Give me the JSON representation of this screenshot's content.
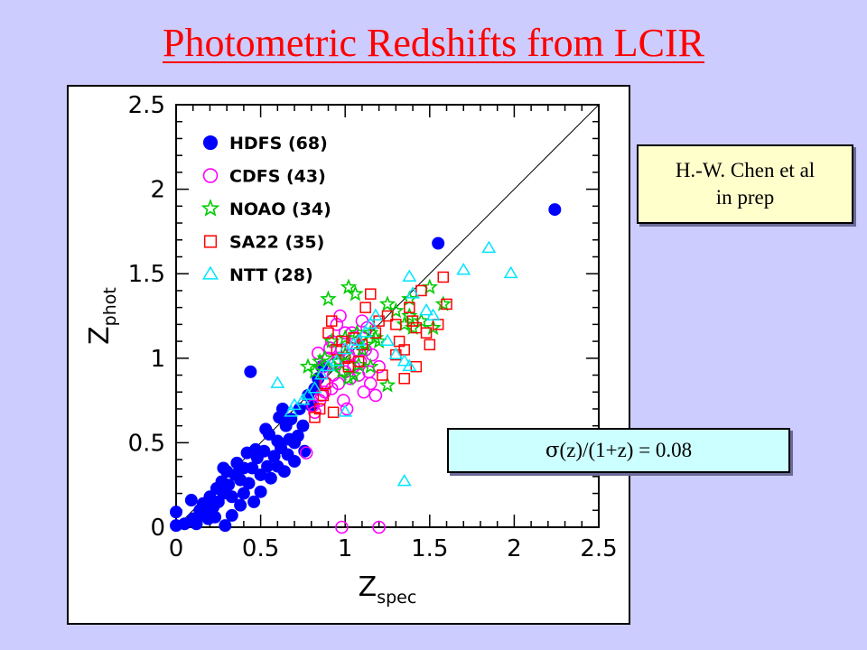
{
  "slide": {
    "title": "Photometric Redshifts from LCIR",
    "credit_line1": "H.-W. Chen et al",
    "credit_line2": "in prep",
    "sigma_symbol": "σ",
    "sigma_rest": "(z)/(1+z) = 0.08"
  },
  "colors": {
    "title": "#ff0000",
    "background": "#ccccff",
    "HDFS": "#0000ff",
    "CDFS": "#ff00ff",
    "NOAO": "#00cc00",
    "SA22": "#ff0000",
    "NTT": "#00e5ff"
  },
  "chart_data": {
    "type": "scatter",
    "title": "",
    "xlabel_main": "Z",
    "xlabel_sub": "spec",
    "ylabel_main": "Z",
    "ylabel_sub": "phot",
    "xlim": [
      0,
      2.5
    ],
    "ylim": [
      0,
      2.5
    ],
    "x_ticks": [
      "0",
      "0.5",
      "1",
      "1.5",
      "2",
      "2.5"
    ],
    "y_ticks": [
      "0",
      "0.5",
      "1",
      "1.5",
      "2",
      "2.5"
    ],
    "grid": false,
    "legend_position": "top-left",
    "reference_line": [
      [
        0,
        0
      ],
      [
        2.5,
        2.5
      ]
    ],
    "series": [
      {
        "name": "HDFS (68)",
        "marker": "filled-circle",
        "points": [
          [
            0,
            0.09
          ],
          [
            0,
            0.01
          ],
          [
            0.05,
            0.02
          ],
          [
            0.09,
            0.16
          ],
          [
            0.1,
            0.05
          ],
          [
            0.12,
            0.02
          ],
          [
            0.14,
            0.1
          ],
          [
            0.16,
            0.14
          ],
          [
            0.18,
            0.09
          ],
          [
            0.2,
            0.18
          ],
          [
            0.22,
            0.12
          ],
          [
            0.23,
            0.06
          ],
          [
            0.24,
            0.23
          ],
          [
            0.25,
            0.15
          ],
          [
            0.27,
            0.27
          ],
          [
            0.28,
            0.2
          ],
          [
            0.3,
            0.33
          ],
          [
            0.31,
            0.25
          ],
          [
            0.33,
            0.18
          ],
          [
            0.35,
            0.31
          ],
          [
            0.36,
            0.38
          ],
          [
            0.38,
            0.28
          ],
          [
            0.38,
            0.13
          ],
          [
            0.4,
            0.35
          ],
          [
            0.42,
            0.44
          ],
          [
            0.43,
            0.26
          ],
          [
            0.45,
            0.35
          ],
          [
            0.46,
            0.15
          ],
          [
            0.48,
            0.41
          ],
          [
            0.5,
            0.31
          ],
          [
            0.5,
            0.21
          ],
          [
            0.52,
            0.45
          ],
          [
            0.54,
            0.36
          ],
          [
            0.55,
            0.55
          ],
          [
            0.56,
            0.29
          ],
          [
            0.58,
            0.42
          ],
          [
            0.6,
            0.36
          ],
          [
            0.6,
            0.51
          ],
          [
            0.61,
            0.65
          ],
          [
            0.62,
            0.47
          ],
          [
            0.64,
            0.33
          ],
          [
            0.65,
            0.6
          ],
          [
            0.66,
            0.43
          ],
          [
            0.67,
            0.52
          ],
          [
            0.68,
            0.64
          ],
          [
            0.7,
            0.39
          ],
          [
            0.7,
            0.5
          ],
          [
            0.72,
            0.54
          ],
          [
            0.73,
            0.7
          ],
          [
            0.75,
            0.6
          ],
          [
            0.76,
            0.45
          ],
          [
            0.78,
            0.78
          ],
          [
            0.8,
            0.72
          ],
          [
            0.82,
            0.82
          ],
          [
            0.84,
            0.88
          ],
          [
            0.86,
            0.95
          ],
          [
            0.44,
            0.92
          ],
          [
            0.29,
            0.01
          ],
          [
            0.33,
            0.07
          ],
          [
            0.15,
            0.07
          ],
          [
            0.19,
            0.05
          ],
          [
            0.4,
            0.2
          ],
          [
            0.28,
            0.35
          ],
          [
            0.47,
            0.46
          ],
          [
            0.53,
            0.58
          ],
          [
            0.63,
            0.7
          ],
          [
            1.55,
            1.68
          ],
          [
            2.24,
            1.88
          ]
        ]
      },
      {
        "name": "CDFS (43)",
        "marker": "open-circle",
        "points": [
          [
            0.77,
            0.44
          ],
          [
            0.82,
            0.68
          ],
          [
            0.85,
            0.75
          ],
          [
            0.88,
            0.8
          ],
          [
            0.9,
            1.0
          ],
          [
            0.92,
            1.1
          ],
          [
            0.95,
            1.2
          ],
          [
            0.97,
            1.25
          ],
          [
            1.0,
            1.15
          ],
          [
            1.02,
            1.02
          ],
          [
            1.05,
            0.95
          ],
          [
            1.08,
            0.9
          ],
          [
            1.1,
            1.22
          ],
          [
            1.12,
            1.05
          ],
          [
            1.15,
            0.85
          ],
          [
            1.18,
            0.78
          ],
          [
            0.93,
            0.9
          ],
          [
            0.96,
            0.85
          ],
          [
            0.99,
            0.75
          ],
          [
            1.01,
            0.7
          ],
          [
            1.03,
            0.88
          ],
          [
            0.87,
            0.95
          ],
          [
            0.84,
            1.03
          ],
          [
            0.91,
            1.06
          ],
          [
            1.06,
            1.12
          ],
          [
            1.09,
            0.98
          ],
          [
            0.94,
            0.97
          ],
          [
            0.98,
            1.05
          ],
          [
            1.04,
            1.15
          ],
          [
            1.07,
            1.05
          ],
          [
            0.89,
            0.85
          ],
          [
            0.81,
            0.72
          ],
          [
            1.14,
            0.92
          ],
          [
            1.2,
            0.95
          ],
          [
            1.13,
            1.18
          ],
          [
            1.0,
            0.92
          ],
          [
            0.96,
            1.0
          ],
          [
            0.86,
            0.78
          ],
          [
            1.11,
            0.8
          ],
          [
            1.16,
            1.02
          ],
          [
            0.98,
            0.0
          ],
          [
            1.2,
            0.0
          ],
          [
            0.92,
            0.82
          ]
        ]
      },
      {
        "name": "NOAO (34)",
        "marker": "open-star",
        "points": [
          [
            0.78,
            0.95
          ],
          [
            0.82,
            0.92
          ],
          [
            0.85,
            0.98
          ],
          [
            0.88,
            1.0
          ],
          [
            0.9,
            1.35
          ],
          [
            0.93,
            0.95
          ],
          [
            0.96,
            0.98
          ],
          [
            1.0,
            1.02
          ],
          [
            1.02,
            0.88
          ],
          [
            1.05,
            0.9
          ],
          [
            1.07,
            1.15
          ],
          [
            1.1,
            1.05
          ],
          [
            1.12,
            1.08
          ],
          [
            1.15,
            0.95
          ],
          [
            1.18,
            1.12
          ],
          [
            1.2,
            1.1
          ],
          [
            1.25,
            1.32
          ],
          [
            1.3,
            1.28
          ],
          [
            1.35,
            1.2
          ],
          [
            1.38,
            1.25
          ],
          [
            1.4,
            1.18
          ],
          [
            1.45,
            1.22
          ],
          [
            1.5,
            1.42
          ],
          [
            1.52,
            1.18
          ],
          [
            1.58,
            1.32
          ],
          [
            1.25,
            0.84
          ],
          [
            1.02,
            1.42
          ],
          [
            1.06,
            1.38
          ],
          [
            0.92,
            1.1
          ],
          [
            0.98,
            0.92
          ],
          [
            1.08,
            0.96
          ],
          [
            1.15,
            1.15
          ],
          [
            1.0,
            1.12
          ],
          [
            1.38,
            1.35
          ]
        ]
      },
      {
        "name": "SA22 (35)",
        "marker": "open-square",
        "points": [
          [
            0.82,
            0.65
          ],
          [
            0.85,
            0.7
          ],
          [
            0.87,
            0.78
          ],
          [
            0.9,
            1.15
          ],
          [
            0.92,
            1.22
          ],
          [
            0.95,
            1.05
          ],
          [
            0.98,
            1.1
          ],
          [
            1.0,
            1.0
          ],
          [
            1.02,
            0.95
          ],
          [
            1.05,
            1.12
          ],
          [
            1.08,
            0.98
          ],
          [
            1.1,
            1.08
          ],
          [
            1.12,
            1.3
          ],
          [
            1.15,
            1.38
          ],
          [
            1.2,
            1.22
          ],
          [
            1.25,
            1.25
          ],
          [
            1.3,
            1.2
          ],
          [
            1.32,
            1.1
          ],
          [
            1.35,
            1.05
          ],
          [
            1.38,
            1.3
          ],
          [
            1.4,
            1.22
          ],
          [
            1.42,
            1.18
          ],
          [
            1.45,
            1.4
          ],
          [
            1.48,
            1.15
          ],
          [
            1.5,
            1.08
          ],
          [
            1.55,
            1.2
          ],
          [
            1.58,
            1.48
          ],
          [
            1.6,
            1.32
          ],
          [
            1.42,
            0.95
          ],
          [
            1.35,
            0.88
          ],
          [
            1.3,
            1.02
          ],
          [
            1.22,
            0.9
          ],
          [
            1.18,
            1.15
          ],
          [
            0.93,
            0.68
          ],
          [
            0.88,
            0.85
          ]
        ]
      },
      {
        "name": "NTT (28)",
        "marker": "open-triangle",
        "points": [
          [
            0.6,
            0.85
          ],
          [
            0.68,
            0.68
          ],
          [
            0.7,
            0.72
          ],
          [
            0.75,
            0.75
          ],
          [
            0.78,
            0.78
          ],
          [
            0.82,
            0.82
          ],
          [
            0.86,
            0.9
          ],
          [
            0.9,
            0.95
          ],
          [
            0.95,
            0.98
          ],
          [
            1.0,
            1.05
          ],
          [
            1.05,
            1.08
          ],
          [
            1.08,
            1.1
          ],
          [
            1.12,
            1.15
          ],
          [
            1.15,
            1.2
          ],
          [
            1.18,
            1.25
          ],
          [
            1.25,
            1.1
          ],
          [
            1.3,
            1.02
          ],
          [
            1.35,
            0.98
          ],
          [
            1.38,
            0.95
          ],
          [
            1.4,
            1.38
          ],
          [
            1.48,
            1.28
          ],
          [
            1.52,
            1.25
          ],
          [
            1.7,
            1.52
          ],
          [
            1.85,
            1.65
          ],
          [
            1.98,
            1.5
          ],
          [
            1.38,
            1.48
          ],
          [
            1.35,
            0.27
          ],
          [
            1.0,
            0.68
          ]
        ]
      }
    ]
  }
}
